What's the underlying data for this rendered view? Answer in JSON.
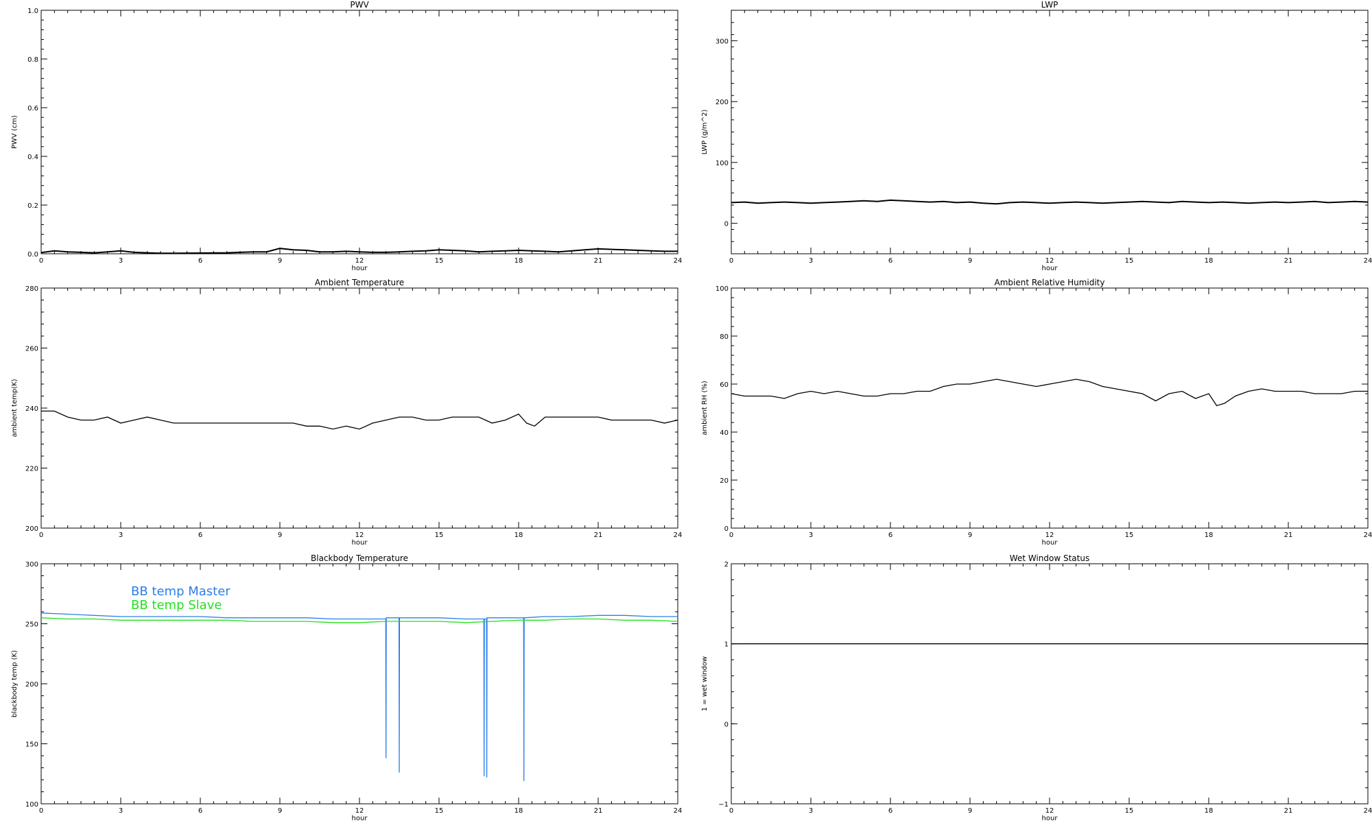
{
  "chart_data": [
    {
      "type": "line",
      "title": "PWV",
      "xlabel": "hour",
      "ylabel": "PWV (cm)",
      "xlim": [
        0,
        24
      ],
      "ylim": [
        0.0,
        1.0
      ],
      "xticks": [
        0,
        3,
        6,
        9,
        12,
        15,
        18,
        21,
        24
      ],
      "xtick_labels": [
        "0",
        "3",
        "6",
        "9",
        "12",
        "15",
        "18",
        "21",
        "24"
      ],
      "ytick_labels": [
        "0.0",
        "0.2",
        "0.4",
        "0.6",
        "0.8",
        "1.0"
      ],
      "yticks": [
        0.0,
        0.2,
        0.4,
        0.6,
        0.8,
        1.0
      ],
      "grid": false,
      "series": [
        {
          "color": "#000000",
          "x": [
            0.0,
            0.5,
            1.0,
            1.5,
            2.0,
            2.5,
            3.0,
            3.5,
            4.0,
            4.5,
            5.0,
            7.0,
            7.5,
            8.0,
            8.5,
            9.0,
            9.5,
            10.0,
            10.5,
            11.0,
            11.5,
            12.0,
            12.5,
            13.0,
            13.5,
            14.0,
            14.5,
            15.0,
            15.5,
            16.0,
            16.5,
            17.0,
            17.5,
            18.0,
            18.5,
            19.0,
            19.5,
            20.0,
            20.5,
            21.0,
            21.5,
            22.0,
            22.5,
            23.0,
            23.5,
            24.0
          ],
          "y": [
            0.005,
            0.012,
            0.008,
            0.006,
            0.004,
            0.008,
            0.012,
            0.006,
            0.004,
            0.002,
            0.002,
            0.004,
            0.006,
            0.008,
            0.008,
            0.022,
            0.016,
            0.014,
            0.008,
            0.008,
            0.01,
            0.008,
            0.006,
            0.006,
            0.008,
            0.01,
            0.012,
            0.016,
            0.014,
            0.012,
            0.008,
            0.01,
            0.012,
            0.014,
            0.012,
            0.01,
            0.008,
            0.012,
            0.016,
            0.02,
            0.018,
            0.016,
            0.014,
            0.012,
            0.01,
            0.01
          ]
        }
      ]
    },
    {
      "type": "line",
      "title": "LWP",
      "xlabel": "hour",
      "ylabel": "LWP (g/m^2)",
      "xlim": [
        0,
        24
      ],
      "ylim": [
        -50,
        350
      ],
      "xticks": [
        0,
        3,
        6,
        9,
        12,
        15,
        18,
        21,
        24
      ],
      "xtick_labels": [
        "0",
        "3",
        "6",
        "9",
        "12",
        "15",
        "18",
        "21",
        "24"
      ],
      "yticks": [
        0,
        100,
        200,
        300
      ],
      "ytick_labels": [
        "0",
        "100",
        "200",
        "300"
      ],
      "grid": false,
      "series": [
        {
          "color": "#000000",
          "x": [
            0.0,
            0.5,
            1.0,
            1.5,
            2.0,
            2.5,
            3.0,
            3.5,
            4.0,
            4.5,
            5.0,
            5.5,
            6.0,
            6.5,
            7.0,
            7.5,
            8.0,
            8.5,
            9.0,
            9.5,
            10.0,
            10.5,
            11.0,
            11.5,
            12.0,
            12.5,
            13.0,
            13.5,
            14.0,
            14.5,
            15.0,
            15.5,
            16.0,
            16.5,
            17.0,
            17.5,
            18.0,
            18.5,
            19.0,
            19.5,
            20.0,
            20.5,
            21.0,
            21.5,
            22.0,
            22.5,
            23.0,
            23.5,
            24.0
          ],
          "y": [
            34,
            35,
            33,
            34,
            35,
            34,
            33,
            34,
            35,
            36,
            37,
            36,
            38,
            37,
            36,
            35,
            36,
            34,
            35,
            33,
            32,
            34,
            35,
            34,
            33,
            34,
            35,
            34,
            33,
            34,
            35,
            36,
            35,
            34,
            36,
            35,
            34,
            35,
            34,
            33,
            34,
            35,
            34,
            35,
            36,
            34,
            35,
            36,
            35
          ]
        }
      ]
    },
    {
      "type": "line",
      "title": "Ambient Temperature",
      "xlabel": "hour",
      "ylabel": "ambient temp(K)",
      "xlim": [
        0,
        24
      ],
      "ylim": [
        200,
        280
      ],
      "xticks": [
        0,
        3,
        6,
        9,
        12,
        15,
        18,
        21,
        24
      ],
      "xtick_labels": [
        "0",
        "3",
        "6",
        "9",
        "12",
        "15",
        "18",
        "21",
        "24"
      ],
      "yticks": [
        200,
        220,
        240,
        260,
        280
      ],
      "ytick_labels": [
        "200",
        "220",
        "240",
        "260",
        "280"
      ],
      "grid": false,
      "series": [
        {
          "color": "#000000",
          "x": [
            0.0,
            0.5,
            1.0,
            1.5,
            2.0,
            2.5,
            3.0,
            3.5,
            4.0,
            4.5,
            5.0,
            5.5,
            6.0,
            6.5,
            7.0,
            7.5,
            8.0,
            8.5,
            9.0,
            9.5,
            10.0,
            10.5,
            11.0,
            11.5,
            12.0,
            12.5,
            13.0,
            13.5,
            14.0,
            14.5,
            15.0,
            15.5,
            16.0,
            16.5,
            17.0,
            17.5,
            18.0,
            18.3,
            18.6,
            19.0,
            19.5,
            20.0,
            20.5,
            21.0,
            21.5,
            22.0,
            22.5,
            23.0,
            23.5,
            24.0
          ],
          "y": [
            239,
            239,
            237,
            236,
            236,
            237,
            235,
            236,
            237,
            236,
            235,
            235,
            235,
            235,
            235,
            235,
            235,
            235,
            235,
            235,
            234,
            234,
            233,
            234,
            233,
            235,
            236,
            237,
            237,
            236,
            236,
            237,
            237,
            237,
            235,
            236,
            238,
            235,
            234,
            237,
            237,
            237,
            237,
            237,
            236,
            236,
            236,
            236,
            235,
            236
          ]
        }
      ]
    },
    {
      "type": "line",
      "title": "Ambient Relative Humidity",
      "xlabel": "hour",
      "ylabel": "ambient RH (%)",
      "xlim": [
        0,
        24
      ],
      "ylim": [
        0,
        100
      ],
      "xticks": [
        0,
        3,
        6,
        9,
        12,
        15,
        18,
        21,
        24
      ],
      "xtick_labels": [
        "0",
        "3",
        "6",
        "9",
        "12",
        "15",
        "18",
        "21",
        "24"
      ],
      "yticks": [
        0,
        20,
        40,
        60,
        80,
        100
      ],
      "ytick_labels": [
        "0",
        "20",
        "40",
        "60",
        "80",
        "100"
      ],
      "grid": false,
      "series": [
        {
          "color": "#000000",
          "x": [
            0.0,
            0.5,
            1.0,
            1.5,
            2.0,
            2.5,
            3.0,
            3.5,
            4.0,
            4.5,
            5.0,
            5.5,
            6.0,
            6.5,
            7.0,
            7.5,
            8.0,
            8.5,
            9.0,
            9.5,
            10.0,
            10.5,
            11.0,
            11.5,
            12.0,
            12.5,
            13.0,
            13.5,
            14.0,
            14.5,
            15.0,
            15.5,
            16.0,
            16.5,
            17.0,
            17.5,
            18.0,
            18.3,
            18.6,
            19.0,
            19.5,
            20.0,
            20.5,
            21.0,
            21.5,
            22.0,
            22.5,
            23.0,
            23.5,
            24.0
          ],
          "y": [
            56,
            55,
            55,
            55,
            54,
            56,
            57,
            56,
            57,
            56,
            55,
            55,
            56,
            56,
            57,
            57,
            59,
            60,
            60,
            61,
            62,
            61,
            60,
            59,
            60,
            61,
            62,
            61,
            59,
            58,
            57,
            56,
            53,
            56,
            57,
            54,
            56,
            51,
            52,
            55,
            57,
            58,
            57,
            57,
            57,
            56,
            56,
            56,
            57,
            57
          ]
        }
      ]
    },
    {
      "type": "line",
      "title": "Blackbody Temperature",
      "xlabel": "hour",
      "ylabel": "blackbody temp (K)",
      "xlim": [
        0,
        24
      ],
      "ylim": [
        100,
        300
      ],
      "xticks": [
        0,
        3,
        6,
        9,
        12,
        15,
        18,
        21,
        24
      ],
      "xtick_labels": [
        "0",
        "3",
        "6",
        "9",
        "12",
        "15",
        "18",
        "21",
        "24"
      ],
      "yticks": [
        100,
        150,
        200,
        250,
        300
      ],
      "ytick_labels": [
        "100",
        "150",
        "200",
        "250",
        "300"
      ],
      "grid": false,
      "legend": "top-left",
      "series": [
        {
          "name": "BB temp Master",
          "color": "#2b7fe6",
          "x": [
            0.0,
            1.0,
            2.0,
            3.0,
            4.0,
            5.0,
            6.0,
            7.0,
            8.0,
            9.0,
            10.0,
            11.0,
            12.0,
            12.99,
            13.0,
            13.01,
            13.49,
            13.5,
            13.51,
            14.0,
            15.0,
            16.0,
            16.69,
            16.7,
            16.71,
            16.79,
            16.8,
            16.81,
            17.0,
            18.0,
            18.19,
            18.2,
            18.21,
            19.0,
            20.0,
            21.0,
            22.0,
            23.0,
            24.0
          ],
          "y": [
            259,
            258,
            257,
            256,
            256,
            256,
            256,
            255,
            255,
            255,
            255,
            254,
            254,
            254,
            138,
            255,
            255,
            126,
            255,
            255,
            255,
            254,
            254,
            123,
            254,
            254,
            122,
            255,
            255,
            255,
            255,
            119,
            255,
            256,
            256,
            257,
            257,
            256,
            256
          ]
        },
        {
          "name": "BB temp Slave",
          "color": "#22e01e",
          "x": [
            0.0,
            1.0,
            2.0,
            3.0,
            4.0,
            5.0,
            6.0,
            7.0,
            8.0,
            9.0,
            10.0,
            11.0,
            12.0,
            13.0,
            14.0,
            15.0,
            16.0,
            17.0,
            18.0,
            19.0,
            20.0,
            21.0,
            22.0,
            23.0,
            24.0
          ],
          "y": [
            255,
            254,
            254,
            253,
            253,
            253,
            253,
            253,
            252,
            252,
            252,
            251,
            251,
            252,
            252,
            252,
            251,
            252,
            253,
            253,
            254,
            254,
            253,
            253,
            252
          ]
        }
      ]
    },
    {
      "type": "line",
      "title": "Wet Window Status",
      "xlabel": "hour",
      "ylabel": "1 = wet window",
      "xlim": [
        0,
        24
      ],
      "ylim": [
        -1,
        2
      ],
      "xticks": [
        0,
        3,
        6,
        9,
        12,
        15,
        18,
        21,
        24
      ],
      "xtick_labels": [
        "0",
        "3",
        "6",
        "9",
        "12",
        "15",
        "18",
        "21",
        "24"
      ],
      "yticks": [
        -1,
        0,
        1,
        2
      ],
      "ytick_labels": [
        "−1",
        "0",
        "1",
        "2"
      ],
      "grid": false,
      "series": [
        {
          "color": "#000000",
          "x": [
            0,
            24
          ],
          "y": [
            1,
            1
          ]
        }
      ]
    }
  ]
}
